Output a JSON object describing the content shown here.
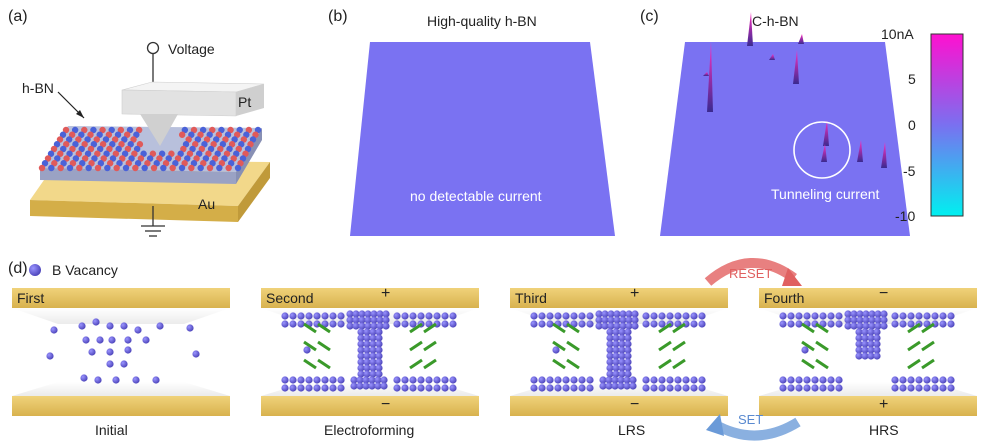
{
  "panels": {
    "a": {
      "label": "(a)",
      "voltage": "Voltage",
      "hbn": "h-BN",
      "pt": "Pt",
      "au": "Au"
    },
    "b": {
      "label": "(b)",
      "title": "High-quality h-BN",
      "note": "no detectable current"
    },
    "c": {
      "label": "(c)",
      "title": "C-h-BN",
      "note": "Tunneling current"
    },
    "d": {
      "label": "(d)",
      "legend": "B Vacancy",
      "reset": "RESET",
      "set": "SET",
      "stages": [
        {
          "tag": "First",
          "top_sign": "",
          "bottom_sign": "",
          "caption": "Initial"
        },
        {
          "tag": "Second",
          "top_sign": "+",
          "bottom_sign": "−",
          "caption": "Electroforming"
        },
        {
          "tag": "Third",
          "top_sign": "+",
          "bottom_sign": "−",
          "caption": "LRS"
        },
        {
          "tag": "Fourth",
          "top_sign": "−",
          "bottom_sign": "+",
          "caption": "HRS"
        }
      ]
    }
  },
  "colorbar": {
    "ticks": [
      "10nA",
      "5",
      "0",
      "-5",
      "-10"
    ],
    "colors": [
      "#ff10d0",
      "#7a70f0",
      "#00f0f0"
    ]
  },
  "colors": {
    "surface": "#7a72f2",
    "gold": "#e0c060",
    "vacancy": "#5a52c8",
    "arrow_green": "#3a9a2a",
    "reset": "#e06060",
    "set": "#6a9ad8"
  }
}
